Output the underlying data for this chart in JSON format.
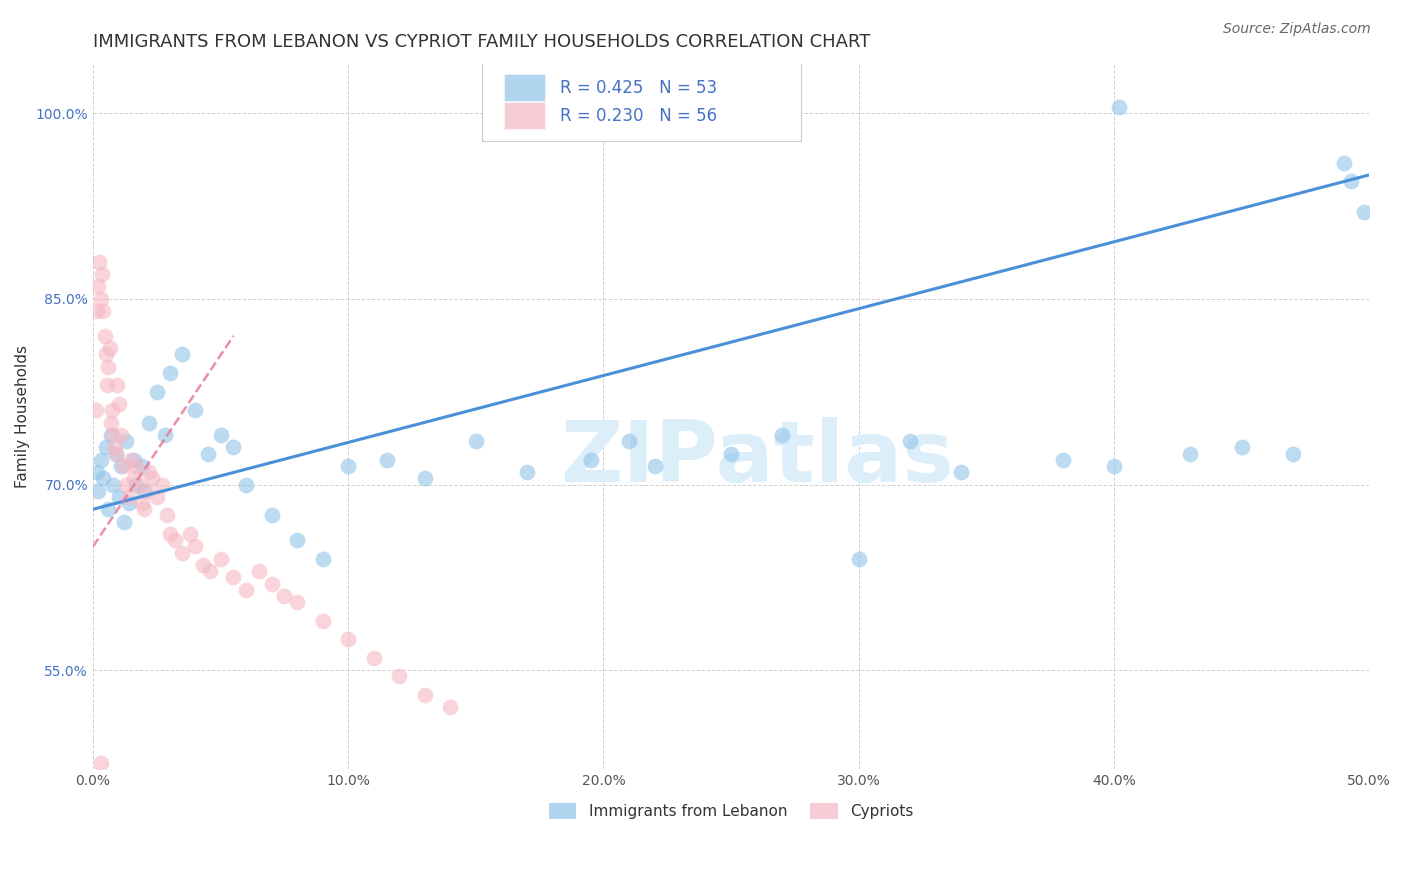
{
  "title": "IMMIGRANTS FROM LEBANON VS CYPRIOT FAMILY HOUSEHOLDS CORRELATION CHART",
  "source": "Source: ZipAtlas.com",
  "ylabel": "Family Households",
  "xlim": [
    0.0,
    50.0
  ],
  "ylim": [
    47.0,
    104.0
  ],
  "x_ticks": [
    0,
    10,
    20,
    30,
    40,
    50
  ],
  "y_ticks": [
    55.0,
    70.0,
    85.0,
    100.0
  ],
  "legend_labels": [
    "Immigrants from Lebanon",
    "Cypriots"
  ],
  "blue_R": "R = 0.425",
  "blue_N": "N = 53",
  "pink_R": "R = 0.230",
  "pink_N": "N = 56",
  "blue_color": "#90c4e8",
  "pink_color": "#f5b8c4",
  "blue_line_color": "#4a90d9",
  "pink_line_color": "#e87a9a",
  "watermark_text": "ZIPatlas",
  "watermark_color": "#dceefa",
  "background_color": "#ffffff",
  "grid_color": "#cccccc",
  "blue_line_x": [
    0.0,
    50.0
  ],
  "blue_line_y": [
    68.0,
    95.0
  ],
  "pink_line_x": [
    0.0,
    5.5
  ],
  "pink_line_y": [
    65.0,
    82.0
  ],
  "title_fontsize": 13,
  "tick_color": "#4472c4",
  "x_tick_color": "#555555"
}
